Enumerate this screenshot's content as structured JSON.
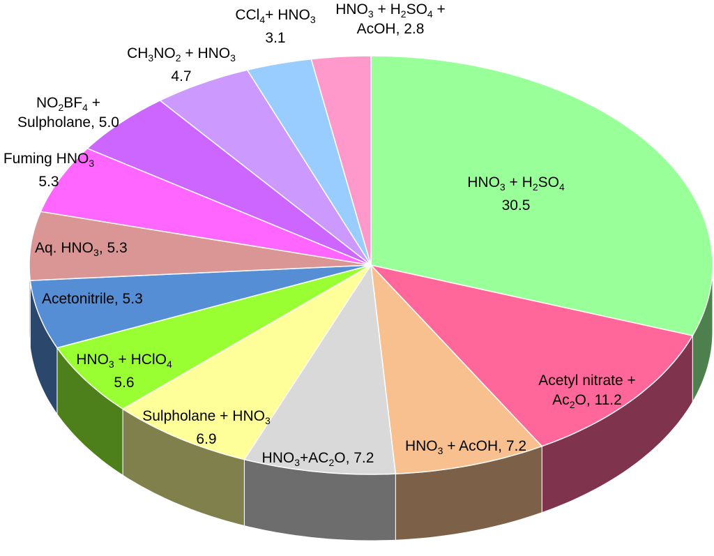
{
  "chart_data": {
    "type": "pie",
    "title": "",
    "slices": [
      {
        "label": [
          [
            "HNO",
            "3",
            " + H",
            "2",
            "SO",
            "4"
          ],
          [
            "30.5"
          ]
        ],
        "value": 30.5,
        "color": "#99ff99"
      },
      {
        "label": [
          [
            "Acetyl nitrate +"
          ],
          [
            "Ac",
            "2",
            "O, 11.2"
          ]
        ],
        "value": 11.2,
        "color": "#ff6699"
      },
      {
        "label": [
          [
            "HNO",
            "3",
            " + AcOH, 7.2"
          ]
        ],
        "value": 7.2,
        "color": "#f9c08f"
      },
      {
        "label": [
          [
            "HNO",
            "3",
            "+AC",
            "2",
            "O, 7.2"
          ]
        ],
        "value": 7.2,
        "color": "#d9d9d9"
      },
      {
        "label": [
          [
            "Sulpholane + HNO",
            "3"
          ],
          [
            "6.9"
          ]
        ],
        "value": 6.9,
        "color": "#ffff99"
      },
      {
        "label": [
          [
            "HNO",
            "3",
            " + HClO",
            "4"
          ],
          [
            "5.6"
          ]
        ],
        "value": 5.6,
        "color": "#99ff33"
      },
      {
        "label": [
          [
            "Acetonitrile, 5.3"
          ]
        ],
        "value": 5.3,
        "color": "#558ed5"
      },
      {
        "label": [
          [
            "Aq. HNO",
            "3",
            ", 5.3"
          ]
        ],
        "value": 5.3,
        "color": "#d99694"
      },
      {
        "label": [
          [
            "Fuming HNO",
            "3"
          ],
          [
            "5.3"
          ]
        ],
        "value": 5.3,
        "color": "#ff66ff"
      },
      {
        "label": [
          [
            "NO",
            "2",
            "BF",
            "4",
            " +"
          ],
          [
            "Sulpholane, 5.0"
          ]
        ],
        "value": 5.0,
        "color": "#cc66ff"
      },
      {
        "label": [
          [
            "CH",
            "3",
            "NO",
            "2",
            " + HNO",
            "3"
          ],
          [
            "4.7"
          ]
        ],
        "value": 4.7,
        "color": "#cc99ff"
      },
      {
        "label": [
          [
            "CCl",
            "4",
            "+ HNO",
            "3"
          ],
          [
            "3.1"
          ]
        ],
        "value": 3.1,
        "color": "#99ccff"
      },
      {
        "label": [
          [
            "HNO",
            "3",
            " + H",
            "2",
            "SO",
            "4",
            " +"
          ],
          [
            "AcOH, 2.8"
          ]
        ],
        "value": 2.8,
        "color": "#ff99cc"
      }
    ]
  }
}
